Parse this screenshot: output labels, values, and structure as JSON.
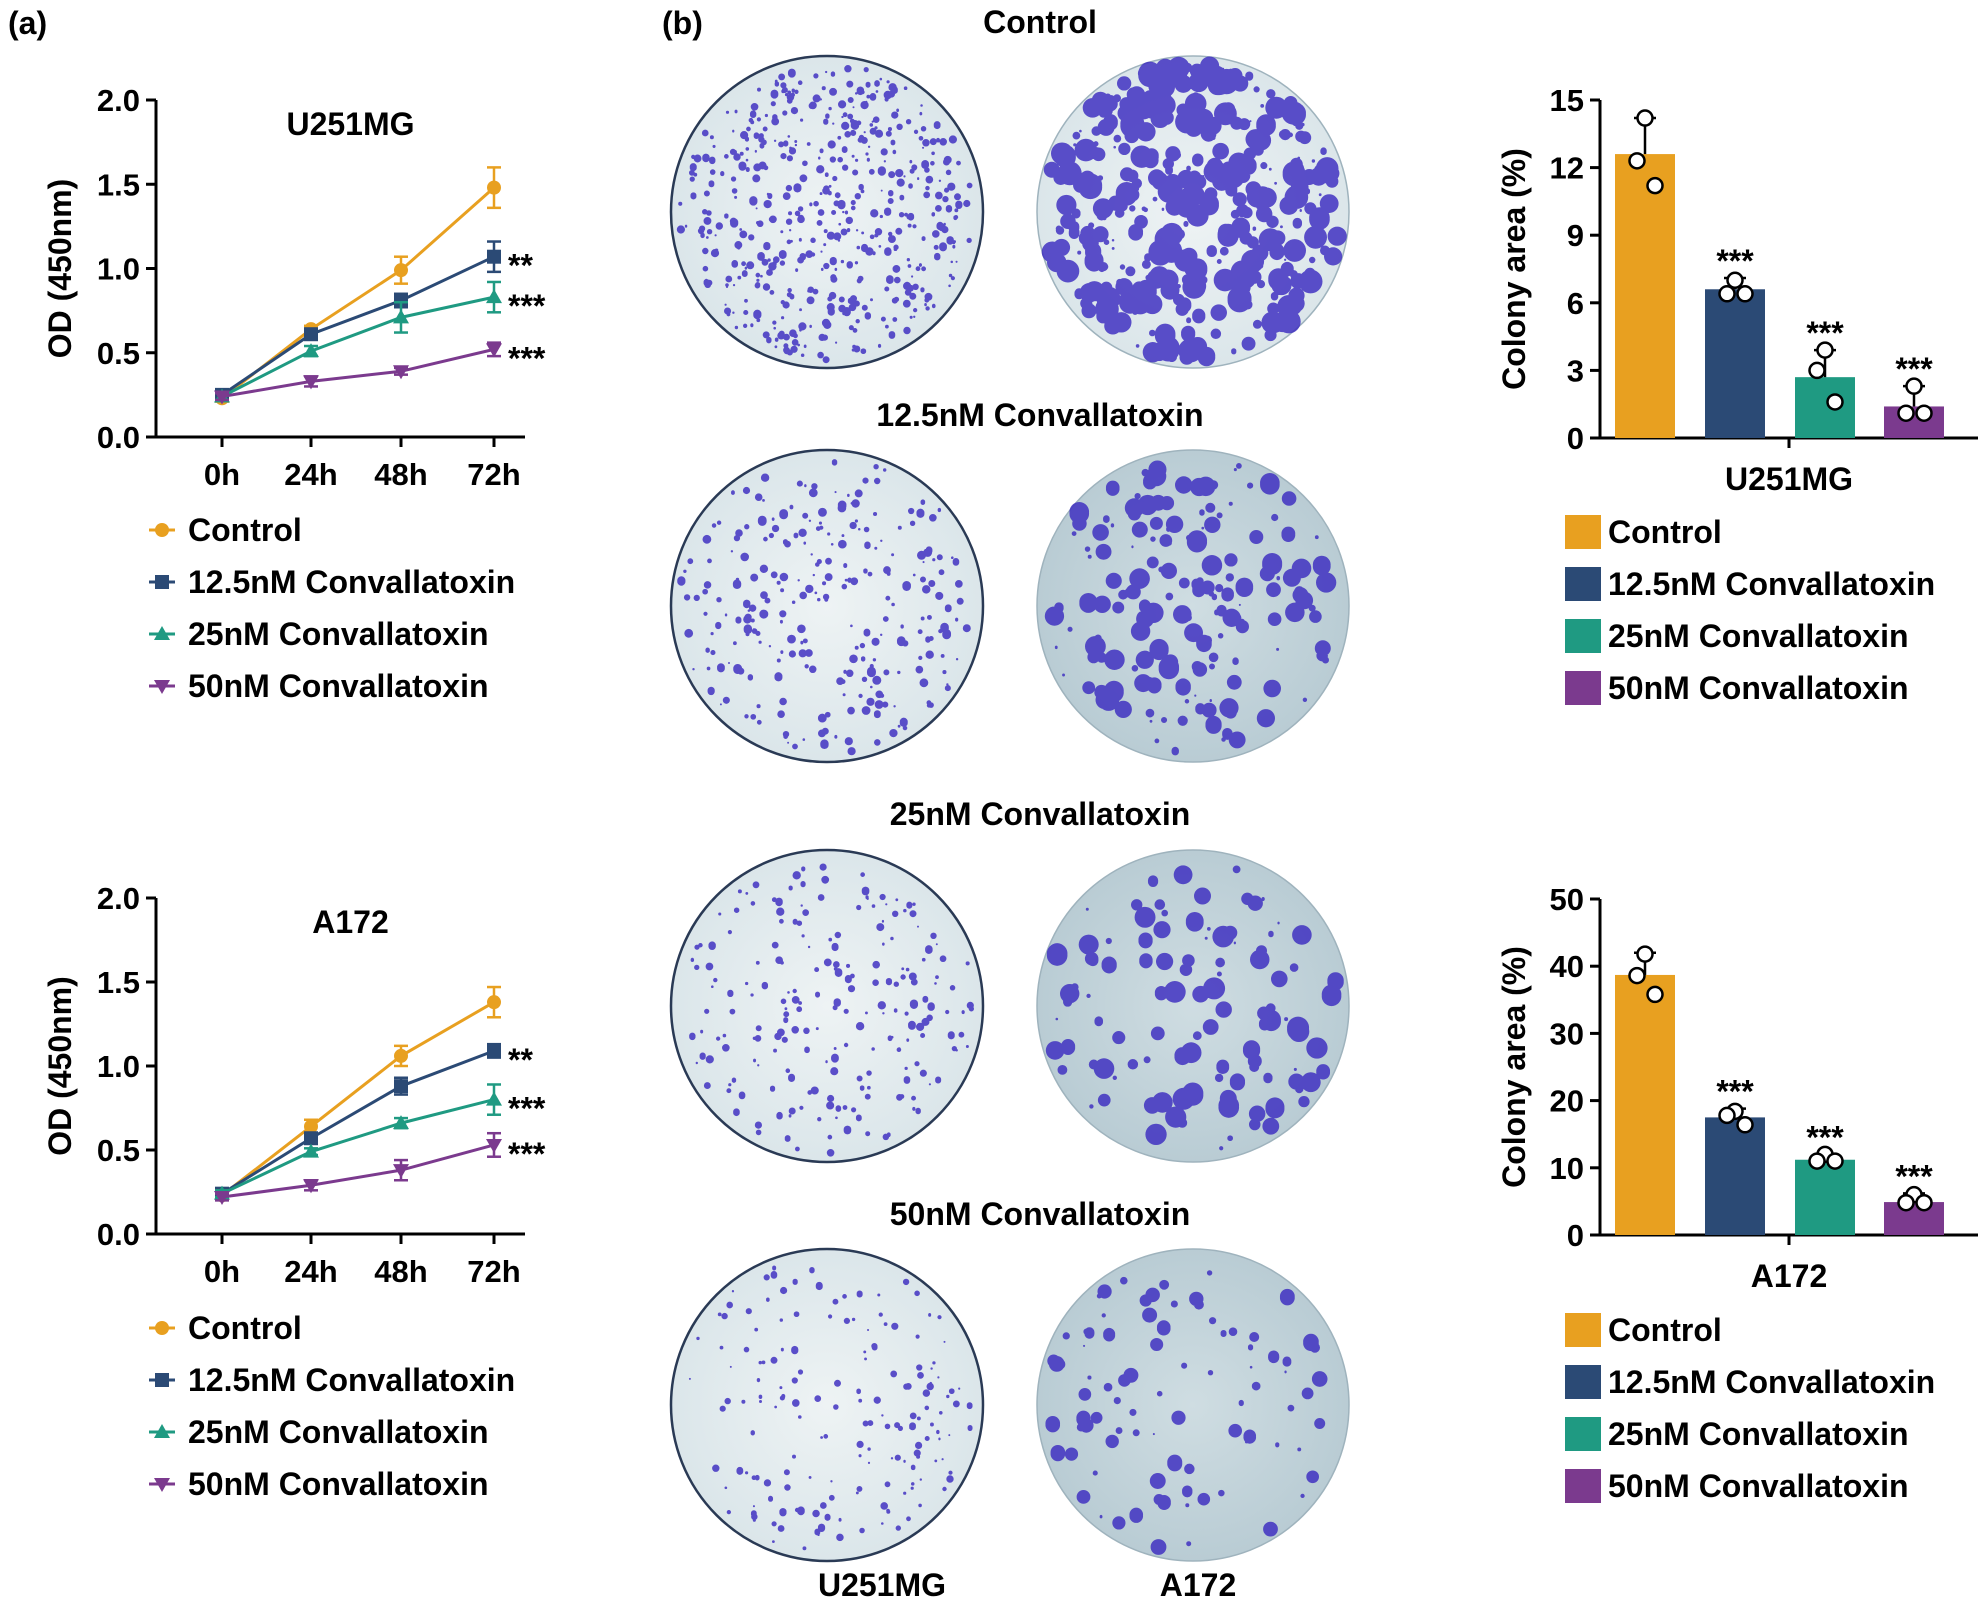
{
  "colors": {
    "control": "#E8A020",
    "c12_5": "#2B4A75",
    "c25": "#1F9A82",
    "c50": "#7B3A8E",
    "stain": "#3A2BC0",
    "axis": "#000000"
  },
  "panel_labels": {
    "a": "(a)",
    "b": "(b)"
  },
  "legend": [
    "Control",
    "12.5nM Convallatoxin",
    "25nM Convallatoxin",
    "50nM Convallatoxin"
  ],
  "plates": {
    "row_titles": [
      "Control",
      "12.5nM Convallatoxin",
      "25nM Convallatoxin",
      "50nM Convallatoxin"
    ],
    "column_labels": [
      "U251MG",
      "A172"
    ]
  },
  "chart_data": [
    {
      "type": "line",
      "title": "U251MG",
      "ylabel": "OD (450nm)",
      "xlabel": "",
      "categories": [
        "0h",
        "24h",
        "48h",
        "72h"
      ],
      "ylim": [
        0,
        2.0
      ],
      "yticks": [
        "0.0",
        "0.5",
        "1.0",
        "1.5",
        "2.0"
      ],
      "series": [
        {
          "name": "Control",
          "values": [
            0.23,
            0.64,
            0.99,
            1.48
          ],
          "errors": [
            0.02,
            0.02,
            0.08,
            0.12
          ],
          "marker": "circle",
          "sig": ""
        },
        {
          "name": "12.5nM Convallatoxin",
          "values": [
            0.25,
            0.61,
            0.81,
            1.07
          ],
          "errors": [
            0.02,
            0.02,
            0.04,
            0.09
          ],
          "marker": "square",
          "sig": "**"
        },
        {
          "name": "25nM Convallatoxin",
          "values": [
            0.24,
            0.51,
            0.71,
            0.83
          ],
          "errors": [
            0.02,
            0.03,
            0.09,
            0.09
          ],
          "marker": "triangle",
          "sig": "***"
        },
        {
          "name": "50nM Convallatoxin",
          "values": [
            0.24,
            0.33,
            0.39,
            0.52
          ],
          "errors": [
            0.02,
            0.03,
            0.02,
            0.04
          ],
          "marker": "invtriangle",
          "sig": "***"
        }
      ]
    },
    {
      "type": "line",
      "title": "A172",
      "ylabel": "OD (450nm)",
      "xlabel": "",
      "categories": [
        "0h",
        "24h",
        "48h",
        "72h"
      ],
      "ylim": [
        0,
        2.0
      ],
      "yticks": [
        "0.0",
        "0.5",
        "1.0",
        "1.5",
        "2.0"
      ],
      "series": [
        {
          "name": "Control",
          "values": [
            0.23,
            0.64,
            1.06,
            1.38
          ],
          "errors": [
            0.02,
            0.04,
            0.06,
            0.09
          ],
          "marker": "circle",
          "sig": ""
        },
        {
          "name": "12.5nM Convallatoxin",
          "values": [
            0.24,
            0.57,
            0.88,
            1.09
          ],
          "errors": [
            0.02,
            0.02,
            0.05,
            0.04
          ],
          "marker": "square",
          "sig": "**"
        },
        {
          "name": "25nM Convallatoxin",
          "values": [
            0.24,
            0.49,
            0.66,
            0.8
          ],
          "errors": [
            0.02,
            0.02,
            0.03,
            0.09
          ],
          "marker": "triangle",
          "sig": "***"
        },
        {
          "name": "50nM Convallatoxin",
          "values": [
            0.22,
            0.29,
            0.38,
            0.53
          ],
          "errors": [
            0.02,
            0.03,
            0.06,
            0.07
          ],
          "marker": "invtriangle",
          "sig": "***"
        }
      ]
    },
    {
      "type": "bar",
      "title": "",
      "xlabel": "U251MG",
      "ylabel": "Colony area (%)",
      "categories": [
        "Control",
        "12.5nM Convallatoxin",
        "25nM Convallatoxin",
        "50nM Convallatoxin"
      ],
      "values": [
        12.6,
        6.6,
        2.7,
        1.4
      ],
      "errors": [
        1.6,
        0.5,
        1.2,
        0.9
      ],
      "points": [
        [
          14.2,
          12.3,
          11.2
        ],
        [
          7.0,
          6.4,
          6.4
        ],
        [
          3.9,
          3.0,
          1.6
        ],
        [
          2.3,
          1.1,
          1.1
        ]
      ],
      "sig": [
        "",
        "***",
        "***",
        "***"
      ],
      "ylim": [
        0,
        15
      ],
      "yticks": [
        "0",
        "3",
        "6",
        "9",
        "12",
        "15"
      ]
    },
    {
      "type": "bar",
      "title": "",
      "xlabel": "A172",
      "ylabel": "Colony area (%)",
      "categories": [
        "Control",
        "12.5nM Convallatoxin",
        "25nM Convallatoxin",
        "50nM Convallatoxin"
      ],
      "values": [
        38.7,
        17.5,
        11.2,
        4.9
      ],
      "errors": [
        3.3,
        1.3,
        0.8,
        1.3
      ],
      "points": [
        [
          41.8,
          38.6,
          35.8
        ],
        [
          18.4,
          17.8,
          16.4
        ],
        [
          12.0,
          11.0,
          11.0
        ],
        [
          6.0,
          4.8,
          4.8
        ]
      ],
      "sig": [
        "",
        "***",
        "***",
        "***"
      ],
      "ylim": [
        0,
        50
      ],
      "yticks": [
        "0",
        "10",
        "20",
        "30",
        "40",
        "50"
      ]
    }
  ]
}
